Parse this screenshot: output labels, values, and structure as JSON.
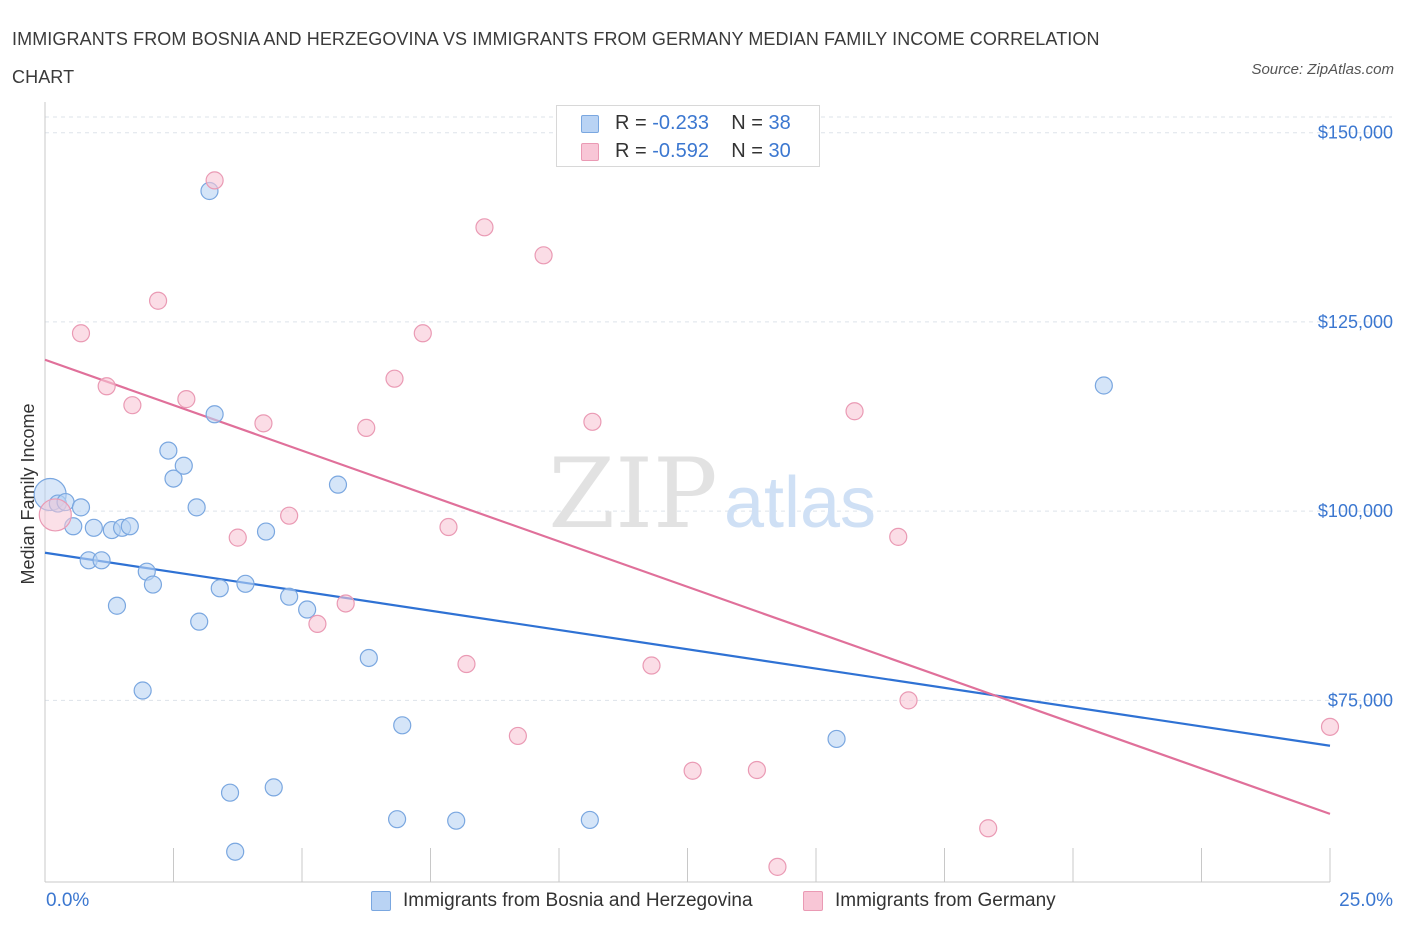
{
  "title": "IMMIGRANTS FROM BOSNIA AND HERZEGOVINA VS IMMIGRANTS FROM GERMANY MEDIAN FAMILY INCOME CORRELATION CHART",
  "source": "Source: ZipAtlas.com",
  "watermark": {
    "zip": "ZIP",
    "atlas": "atlas"
  },
  "colors": {
    "blue_fill": "#b9d3f4",
    "blue_stroke": "#7aa7e0",
    "blue_line": "#2f72d4",
    "pink_fill": "#f8c6d6",
    "pink_stroke": "#ea9ab4",
    "pink_line": "#e0709a",
    "tick_text": "#3b77d0",
    "grid": "#dde3ea"
  },
  "legend": {
    "rows": [
      {
        "r_label": "R =",
        "r_value": "-0.233",
        "n_label": "N =",
        "n_value": "38"
      },
      {
        "r_label": "R =",
        "r_value": "-0.592",
        "n_label": "N =",
        "n_value": "30"
      }
    ]
  },
  "chart_data": {
    "type": "scatter",
    "title": "IMMIGRANTS FROM BOSNIA AND HERZEGOVINA VS IMMIGRANTS FROM GERMANY MEDIAN FAMILY INCOME CORRELATION CHART",
    "ylabel": "Median Family Income",
    "xlabel": "",
    "x_tick_labels": [
      "0.0%",
      "25.0%"
    ],
    "xlim": [
      0,
      25
    ],
    "ylim": [
      51000,
      153000
    ],
    "y_ticks": [
      {
        "value": 75000,
        "label": "$75,000"
      },
      {
        "value": 100000,
        "label": "$100,000"
      },
      {
        "value": 125000,
        "label": "$125,000"
      },
      {
        "value": 150000,
        "label": "$150,000"
      }
    ],
    "grid": true,
    "legend_position": "top-center",
    "series": [
      {
        "name": "Immigrants from Bosnia and Herzegovina",
        "color": "#7aa7e0",
        "trend": {
          "x": [
            0,
            25
          ],
          "y": [
            94500,
            69000
          ]
        },
        "points": [
          {
            "x": 0.1,
            "y": 102200,
            "big": true
          },
          {
            "x": 0.25,
            "y": 101000
          },
          {
            "x": 0.4,
            "y": 101200
          },
          {
            "x": 0.55,
            "y": 98000
          },
          {
            "x": 0.7,
            "y": 100500
          },
          {
            "x": 0.85,
            "y": 93500
          },
          {
            "x": 0.95,
            "y": 97800
          },
          {
            "x": 1.1,
            "y": 93500
          },
          {
            "x": 1.3,
            "y": 97500
          },
          {
            "x": 1.4,
            "y": 87500
          },
          {
            "x": 1.5,
            "y": 97800
          },
          {
            "x": 1.65,
            "y": 98000
          },
          {
            "x": 1.9,
            "y": 76300
          },
          {
            "x": 1.98,
            "y": 92000
          },
          {
            "x": 2.1,
            "y": 90300
          },
          {
            "x": 2.4,
            "y": 108000
          },
          {
            "x": 2.5,
            "y": 104300
          },
          {
            "x": 2.7,
            "y": 106000
          },
          {
            "x": 2.95,
            "y": 100500
          },
          {
            "x": 3.0,
            "y": 85400
          },
          {
            "x": 3.2,
            "y": 142300
          },
          {
            "x": 3.3,
            "y": 112800
          },
          {
            "x": 3.4,
            "y": 89800
          },
          {
            "x": 3.6,
            "y": 62800
          },
          {
            "x": 3.7,
            "y": 55000
          },
          {
            "x": 3.9,
            "y": 90400
          },
          {
            "x": 4.3,
            "y": 97300
          },
          {
            "x": 4.45,
            "y": 63500
          },
          {
            "x": 4.75,
            "y": 88700
          },
          {
            "x": 5.1,
            "y": 87000
          },
          {
            "x": 5.7,
            "y": 103500
          },
          {
            "x": 6.3,
            "y": 80600
          },
          {
            "x": 6.85,
            "y": 59300
          },
          {
            "x": 6.95,
            "y": 71700
          },
          {
            "x": 8.0,
            "y": 59100
          },
          {
            "x": 10.6,
            "y": 59200
          },
          {
            "x": 15.4,
            "y": 69900
          },
          {
            "x": 20.6,
            "y": 116600
          }
        ]
      },
      {
        "name": "Immigrants from Germany",
        "color": "#ea9ab4",
        "trend": {
          "x": [
            0,
            25
          ],
          "y": [
            120000,
            60000
          ]
        },
        "points": [
          {
            "x": 0.2,
            "y": 99500,
            "big": true
          },
          {
            "x": 0.7,
            "y": 123500
          },
          {
            "x": 1.2,
            "y": 116500
          },
          {
            "x": 1.7,
            "y": 114000
          },
          {
            "x": 2.2,
            "y": 127800
          },
          {
            "x": 2.75,
            "y": 114800
          },
          {
            "x": 3.3,
            "y": 143700
          },
          {
            "x": 3.75,
            "y": 96500
          },
          {
            "x": 4.25,
            "y": 111600
          },
          {
            "x": 4.75,
            "y": 99400
          },
          {
            "x": 5.3,
            "y": 85100
          },
          {
            "x": 5.85,
            "y": 87800
          },
          {
            "x": 6.25,
            "y": 111000
          },
          {
            "x": 6.8,
            "y": 117500
          },
          {
            "x": 7.35,
            "y": 123500
          },
          {
            "x": 7.85,
            "y": 97900
          },
          {
            "x": 8.2,
            "y": 79800
          },
          {
            "x": 8.55,
            "y": 137500
          },
          {
            "x": 9.2,
            "y": 70300
          },
          {
            "x": 9.7,
            "y": 133800
          },
          {
            "x": 10.65,
            "y": 111800
          },
          {
            "x": 11.8,
            "y": 79600
          },
          {
            "x": 12.6,
            "y": 65700
          },
          {
            "x": 13.85,
            "y": 65800
          },
          {
            "x": 14.25,
            "y": 53000
          },
          {
            "x": 15.75,
            "y": 113200
          },
          {
            "x": 16.6,
            "y": 96600
          },
          {
            "x": 16.8,
            "y": 75000
          },
          {
            "x": 18.35,
            "y": 58100
          },
          {
            "x": 25.0,
            "y": 71500
          }
        ]
      }
    ]
  }
}
